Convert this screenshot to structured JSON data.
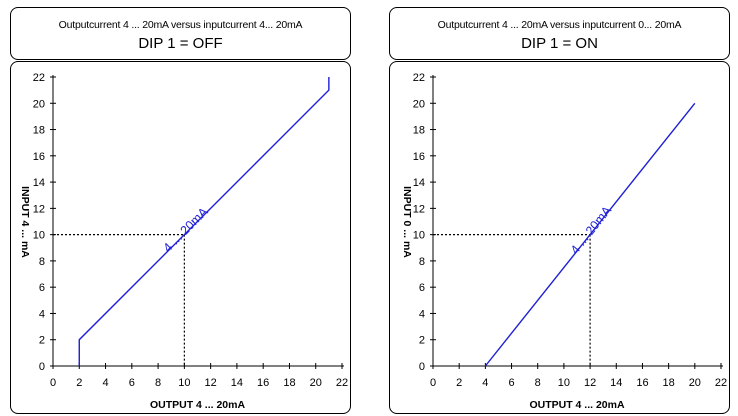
{
  "charts": [
    {
      "header": {
        "subtitle": "Outputcurrent 4 ... 20mA versus inputcurrent 4... 20mA",
        "title": "DIP 1 = OFF"
      }
    },
    {
      "header": {
        "subtitle": "Outputcurrent 4 ... 20mA versus inputcurrent 0... 20mA",
        "title": "DIP 1 = ON"
      }
    }
  ],
  "chart_data": [
    {
      "type": "line",
      "title": "DIP 1 = OFF",
      "subtitle": "Outputcurrent 4 ... 20mA versus inputcurrent 4... 20mA",
      "xlabel": "OUTPUT 4 ... 20mA",
      "ylabel": "INPUT 4 ... mA",
      "xlim": [
        0,
        22
      ],
      "ylim": [
        0,
        22
      ],
      "xticks": [
        0,
        2,
        4,
        6,
        8,
        10,
        12,
        14,
        16,
        18,
        20,
        22
      ],
      "yticks": [
        0,
        2,
        4,
        6,
        8,
        10,
        12,
        14,
        16,
        18,
        20,
        22
      ],
      "grid": false,
      "series": [
        {
          "name": "4 ... 20mA",
          "x": [
            2,
            2,
            21,
            21
          ],
          "y": [
            0,
            2,
            21,
            22
          ]
        }
      ],
      "reference": {
        "x": 10,
        "y": 10
      },
      "colors": {
        "line": "#1f1fd6",
        "label": "#1f1fd6"
      }
    },
    {
      "type": "line",
      "title": "DIP 1 = ON",
      "subtitle": "Outputcurrent 4 ... 20mA versus inputcurrent 0... 20mA",
      "xlabel": "OUTPUT 4 ... 20mA",
      "ylabel": "INPUT 0 ... mA",
      "xlim": [
        0,
        22
      ],
      "ylim": [
        0,
        22
      ],
      "xticks": [
        0,
        2,
        4,
        6,
        8,
        10,
        12,
        14,
        16,
        18,
        20,
        22
      ],
      "yticks": [
        0,
        2,
        4,
        6,
        8,
        10,
        12,
        14,
        16,
        18,
        20,
        22
      ],
      "grid": false,
      "series": [
        {
          "name": "4 ... 20mA",
          "x": [
            4,
            20
          ],
          "y": [
            0,
            20
          ]
        }
      ],
      "reference": {
        "x": 12,
        "y": 10
      },
      "colors": {
        "line": "#1f1fd6",
        "label": "#1f1fd6"
      }
    }
  ]
}
